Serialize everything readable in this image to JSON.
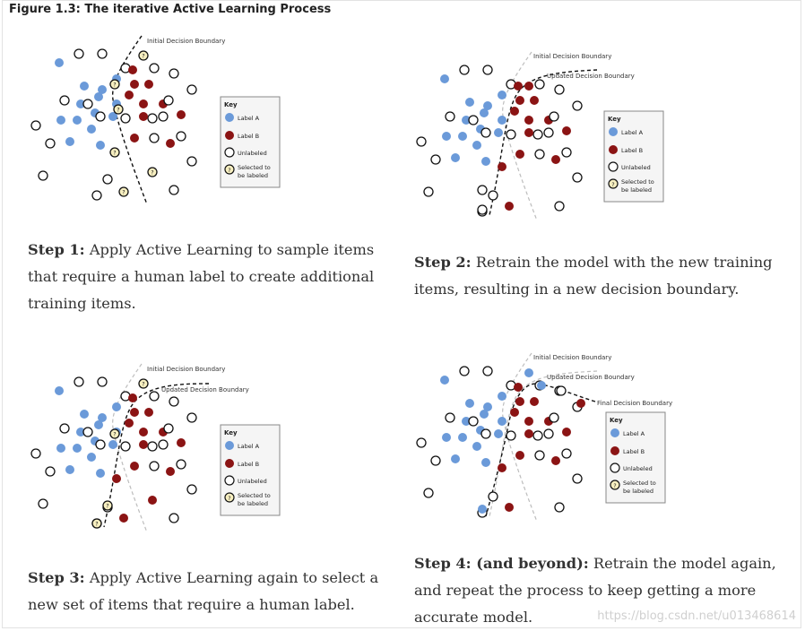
{
  "figure_title": "Figure 1.3: The iterative Active Learning Process",
  "colors": {
    "label_a": "#6b9ad9",
    "label_b": "#8b1414",
    "unlabeled": "#ffffff",
    "selected": "#f7efc0",
    "line": "#111111",
    "line_faint": "#bdbdbd"
  },
  "boundaries": {
    "initial": "Initial Decision Boundary",
    "updated": "Updated Decision Boundary",
    "final": "Final Decision Boundary"
  },
  "key": {
    "title": "Key",
    "label_a": "Label A",
    "label_b": "Label B",
    "unlabeled": "Unlabeled",
    "selected_line1": "Selected to",
    "selected_line2": "be labeled",
    "selected_glyph": "?"
  },
  "steps": [
    {
      "label": "Step 1:",
      "text": "Apply Active Learning to sample items that require a human label to create additional training items."
    },
    {
      "label": "Step 2:",
      "text": "Retrain the model with the new training items, resulting in a new decision boundary."
    },
    {
      "label": "Step 3:",
      "text": "Apply Active Learning again to select a new set of items that require a human label."
    },
    {
      "label": "Step 4: (and beyond):",
      "text": "Retrain the model again, and repeat the process to keep getting a more accurate model."
    }
  ],
  "watermark": "https://blog.csdn.net/u013468614"
}
